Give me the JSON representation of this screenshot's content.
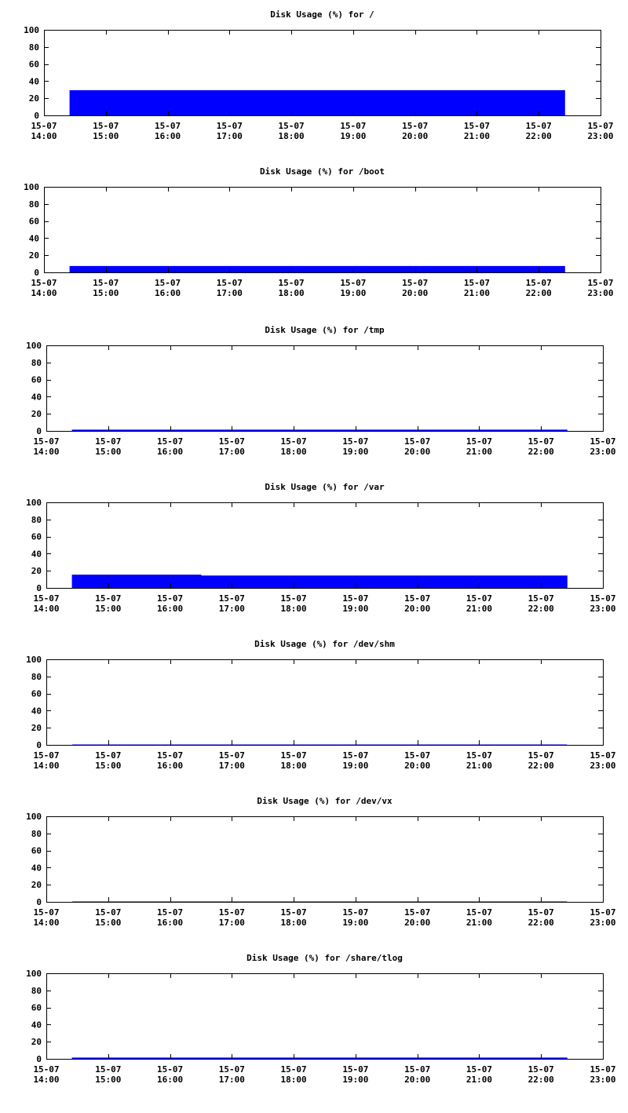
{
  "chart_data": [
    {
      "type": "area",
      "title": "Disk Usage (%) for /",
      "x_tick_labels": [
        [
          "15-07",
          "14:00"
        ],
        [
          "15-07",
          "15:00"
        ],
        [
          "15-07",
          "16:00"
        ],
        [
          "15-07",
          "17:00"
        ],
        [
          "15-07",
          "18:00"
        ],
        [
          "15-07",
          "19:00"
        ],
        [
          "15-07",
          "20:00"
        ],
        [
          "15-07",
          "21:00"
        ],
        [
          "15-07",
          "22:00"
        ],
        [
          "15-07",
          "23:00"
        ]
      ],
      "xlim": [
        14.0,
        23.0
      ],
      "ylim": [
        0,
        100
      ],
      "y_ticks": [
        0,
        20,
        40,
        60,
        80,
        100
      ],
      "series": [
        {
          "color": "#0000ff",
          "points": [
            [
              14.42,
              29
            ],
            [
              22.42,
              29
            ]
          ]
        }
      ]
    },
    {
      "type": "area",
      "title": "Disk Usage (%) for /boot",
      "x_tick_labels": [
        [
          "15-07",
          "14:00"
        ],
        [
          "15-07",
          "15:00"
        ],
        [
          "15-07",
          "16:00"
        ],
        [
          "15-07",
          "17:00"
        ],
        [
          "15-07",
          "18:00"
        ],
        [
          "15-07",
          "19:00"
        ],
        [
          "15-07",
          "20:00"
        ],
        [
          "15-07",
          "21:00"
        ],
        [
          "15-07",
          "22:00"
        ],
        [
          "15-07",
          "23:00"
        ]
      ],
      "xlim": [
        14.0,
        23.0
      ],
      "ylim": [
        0,
        100
      ],
      "y_ticks": [
        0,
        20,
        40,
        60,
        80,
        100
      ],
      "series": [
        {
          "color": "#0000ff",
          "points": [
            [
              14.42,
              7
            ],
            [
              22.42,
              7
            ]
          ]
        }
      ]
    },
    {
      "type": "area",
      "title": "Disk Usage (%) for /tmp",
      "x_tick_labels": [
        [
          "15-07",
          "14:00"
        ],
        [
          "15-07",
          "15:00"
        ],
        [
          "15-07",
          "16:00"
        ],
        [
          "15-07",
          "17:00"
        ],
        [
          "15-07",
          "18:00"
        ],
        [
          "15-07",
          "19:00"
        ],
        [
          "15-07",
          "20:00"
        ],
        [
          "15-07",
          "21:00"
        ],
        [
          "15-07",
          "22:00"
        ],
        [
          "15-07",
          "23:00"
        ]
      ],
      "xlim": [
        14.0,
        23.0
      ],
      "ylim": [
        0,
        100
      ],
      "y_ticks": [
        0,
        20,
        40,
        60,
        80,
        100
      ],
      "series": [
        {
          "color": "#0000ff",
          "points": [
            [
              14.42,
              1
            ],
            [
              22.42,
              1
            ]
          ]
        }
      ]
    },
    {
      "type": "area",
      "title": "Disk Usage (%) for /var",
      "x_tick_labels": [
        [
          "15-07",
          "14:00"
        ],
        [
          "15-07",
          "15:00"
        ],
        [
          "15-07",
          "16:00"
        ],
        [
          "15-07",
          "17:00"
        ],
        [
          "15-07",
          "18:00"
        ],
        [
          "15-07",
          "19:00"
        ],
        [
          "15-07",
          "20:00"
        ],
        [
          "15-07",
          "21:00"
        ],
        [
          "15-07",
          "22:00"
        ],
        [
          "15-07",
          "23:00"
        ]
      ],
      "xlim": [
        14.0,
        23.0
      ],
      "ylim": [
        0,
        100
      ],
      "y_ticks": [
        0,
        20,
        40,
        60,
        80,
        100
      ],
      "series": [
        {
          "color": "#0000ff",
          "points": [
            [
              14.42,
              15
            ],
            [
              16.5,
              15
            ],
            [
              16.5,
              14
            ],
            [
              22.42,
              14
            ]
          ]
        }
      ]
    },
    {
      "type": "area",
      "title": "Disk Usage (%) for /dev/shm",
      "x_tick_labels": [
        [
          "15-07",
          "14:00"
        ],
        [
          "15-07",
          "15:00"
        ],
        [
          "15-07",
          "16:00"
        ],
        [
          "15-07",
          "17:00"
        ],
        [
          "15-07",
          "18:00"
        ],
        [
          "15-07",
          "19:00"
        ],
        [
          "15-07",
          "20:00"
        ],
        [
          "15-07",
          "21:00"
        ],
        [
          "15-07",
          "22:00"
        ],
        [
          "15-07",
          "23:00"
        ]
      ],
      "xlim": [
        14.0,
        23.0
      ],
      "ylim": [
        0,
        100
      ],
      "y_ticks": [
        0,
        20,
        40,
        60,
        80,
        100
      ],
      "series": [
        {
          "color": "#0000ff",
          "points": [
            [
              14.42,
              0
            ],
            [
              22.42,
              0
            ]
          ]
        }
      ]
    },
    {
      "type": "area",
      "title": "Disk Usage (%) for /dev/vx",
      "x_tick_labels": [
        [
          "15-07",
          "14:00"
        ],
        [
          "15-07",
          "15:00"
        ],
        [
          "15-07",
          "16:00"
        ],
        [
          "15-07",
          "17:00"
        ],
        [
          "15-07",
          "18:00"
        ],
        [
          "15-07",
          "19:00"
        ],
        [
          "15-07",
          "20:00"
        ],
        [
          "15-07",
          "21:00"
        ],
        [
          "15-07",
          "22:00"
        ],
        [
          "15-07",
          "23:00"
        ]
      ],
      "xlim": [
        14.0,
        23.0
      ],
      "ylim": [
        0,
        100
      ],
      "y_ticks": [
        0,
        20,
        40,
        60,
        80,
        100
      ],
      "series": [
        {
          "color": "#0000ff",
          "points": [
            [
              14.42,
              0
            ],
            [
              22.42,
              0
            ]
          ]
        }
      ]
    },
    {
      "type": "area",
      "title": "Disk Usage (%) for /share/tlog",
      "x_tick_labels": [
        [
          "15-07",
          "14:00"
        ],
        [
          "15-07",
          "15:00"
        ],
        [
          "15-07",
          "16:00"
        ],
        [
          "15-07",
          "17:00"
        ],
        [
          "15-07",
          "18:00"
        ],
        [
          "15-07",
          "19:00"
        ],
        [
          "15-07",
          "20:00"
        ],
        [
          "15-07",
          "21:00"
        ],
        [
          "15-07",
          "22:00"
        ],
        [
          "15-07",
          "23:00"
        ]
      ],
      "xlim": [
        14.0,
        23.0
      ],
      "ylim": [
        0,
        100
      ],
      "y_ticks": [
        0,
        20,
        40,
        60,
        80,
        100
      ],
      "series": [
        {
          "color": "#0000ff",
          "points": [
            [
              14.42,
              1
            ],
            [
              22.42,
              1
            ]
          ]
        }
      ]
    }
  ]
}
